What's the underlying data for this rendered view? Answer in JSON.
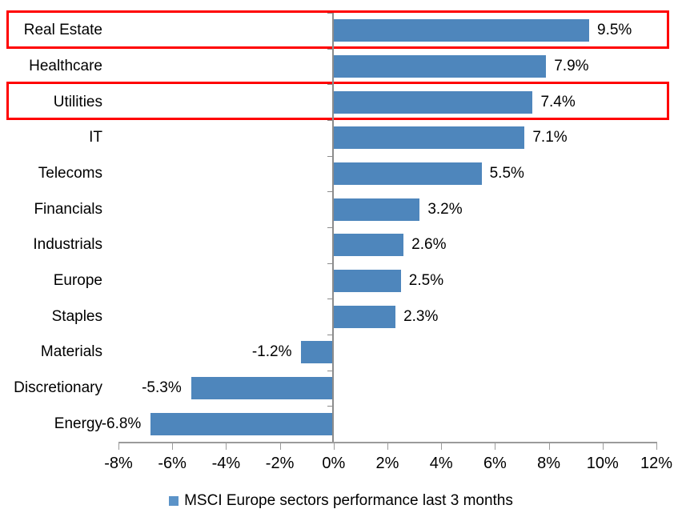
{
  "chart_data": {
    "type": "bar",
    "orientation": "horizontal",
    "categories": [
      "Real Estate",
      "Healthcare",
      "Utilities",
      "IT",
      "Telecoms",
      "Financials",
      "Industrials",
      "Europe",
      "Staples",
      "Materials",
      "Discretionary",
      "Energy"
    ],
    "values": [
      9.5,
      7.9,
      7.4,
      7.1,
      5.5,
      3.2,
      2.6,
      2.5,
      2.3,
      -1.2,
      -5.3,
      -6.8
    ],
    "value_labels": [
      "9.5%",
      "7.9%",
      "7.4%",
      "7.1%",
      "5.5%",
      "3.2%",
      "2.6%",
      "2.5%",
      "2.3%",
      "-1.2%",
      "-5.3%",
      "-6.8%"
    ],
    "legend": "MSCI Europe sectors performance last 3 months",
    "legend_position": "bottom-center",
    "x_axis": {
      "min": -8,
      "max": 12,
      "step": 2,
      "tick_labels": [
        "-8%",
        "-6%",
        "-4%",
        "-2%",
        "0%",
        "2%",
        "4%",
        "6%",
        "8%",
        "10%",
        "12%"
      ]
    },
    "grid": false,
    "highlighted_categories": [
      "Real Estate",
      "Utilities"
    ],
    "colors": {
      "bar": "#4E86BC",
      "legend_marker": "#5B93C8",
      "axis": "#9B9B9B",
      "zero_axis": "#8C8C8C",
      "highlight_border": "#FF0000",
      "text": "#000000",
      "background": "#FFFFFF"
    }
  }
}
